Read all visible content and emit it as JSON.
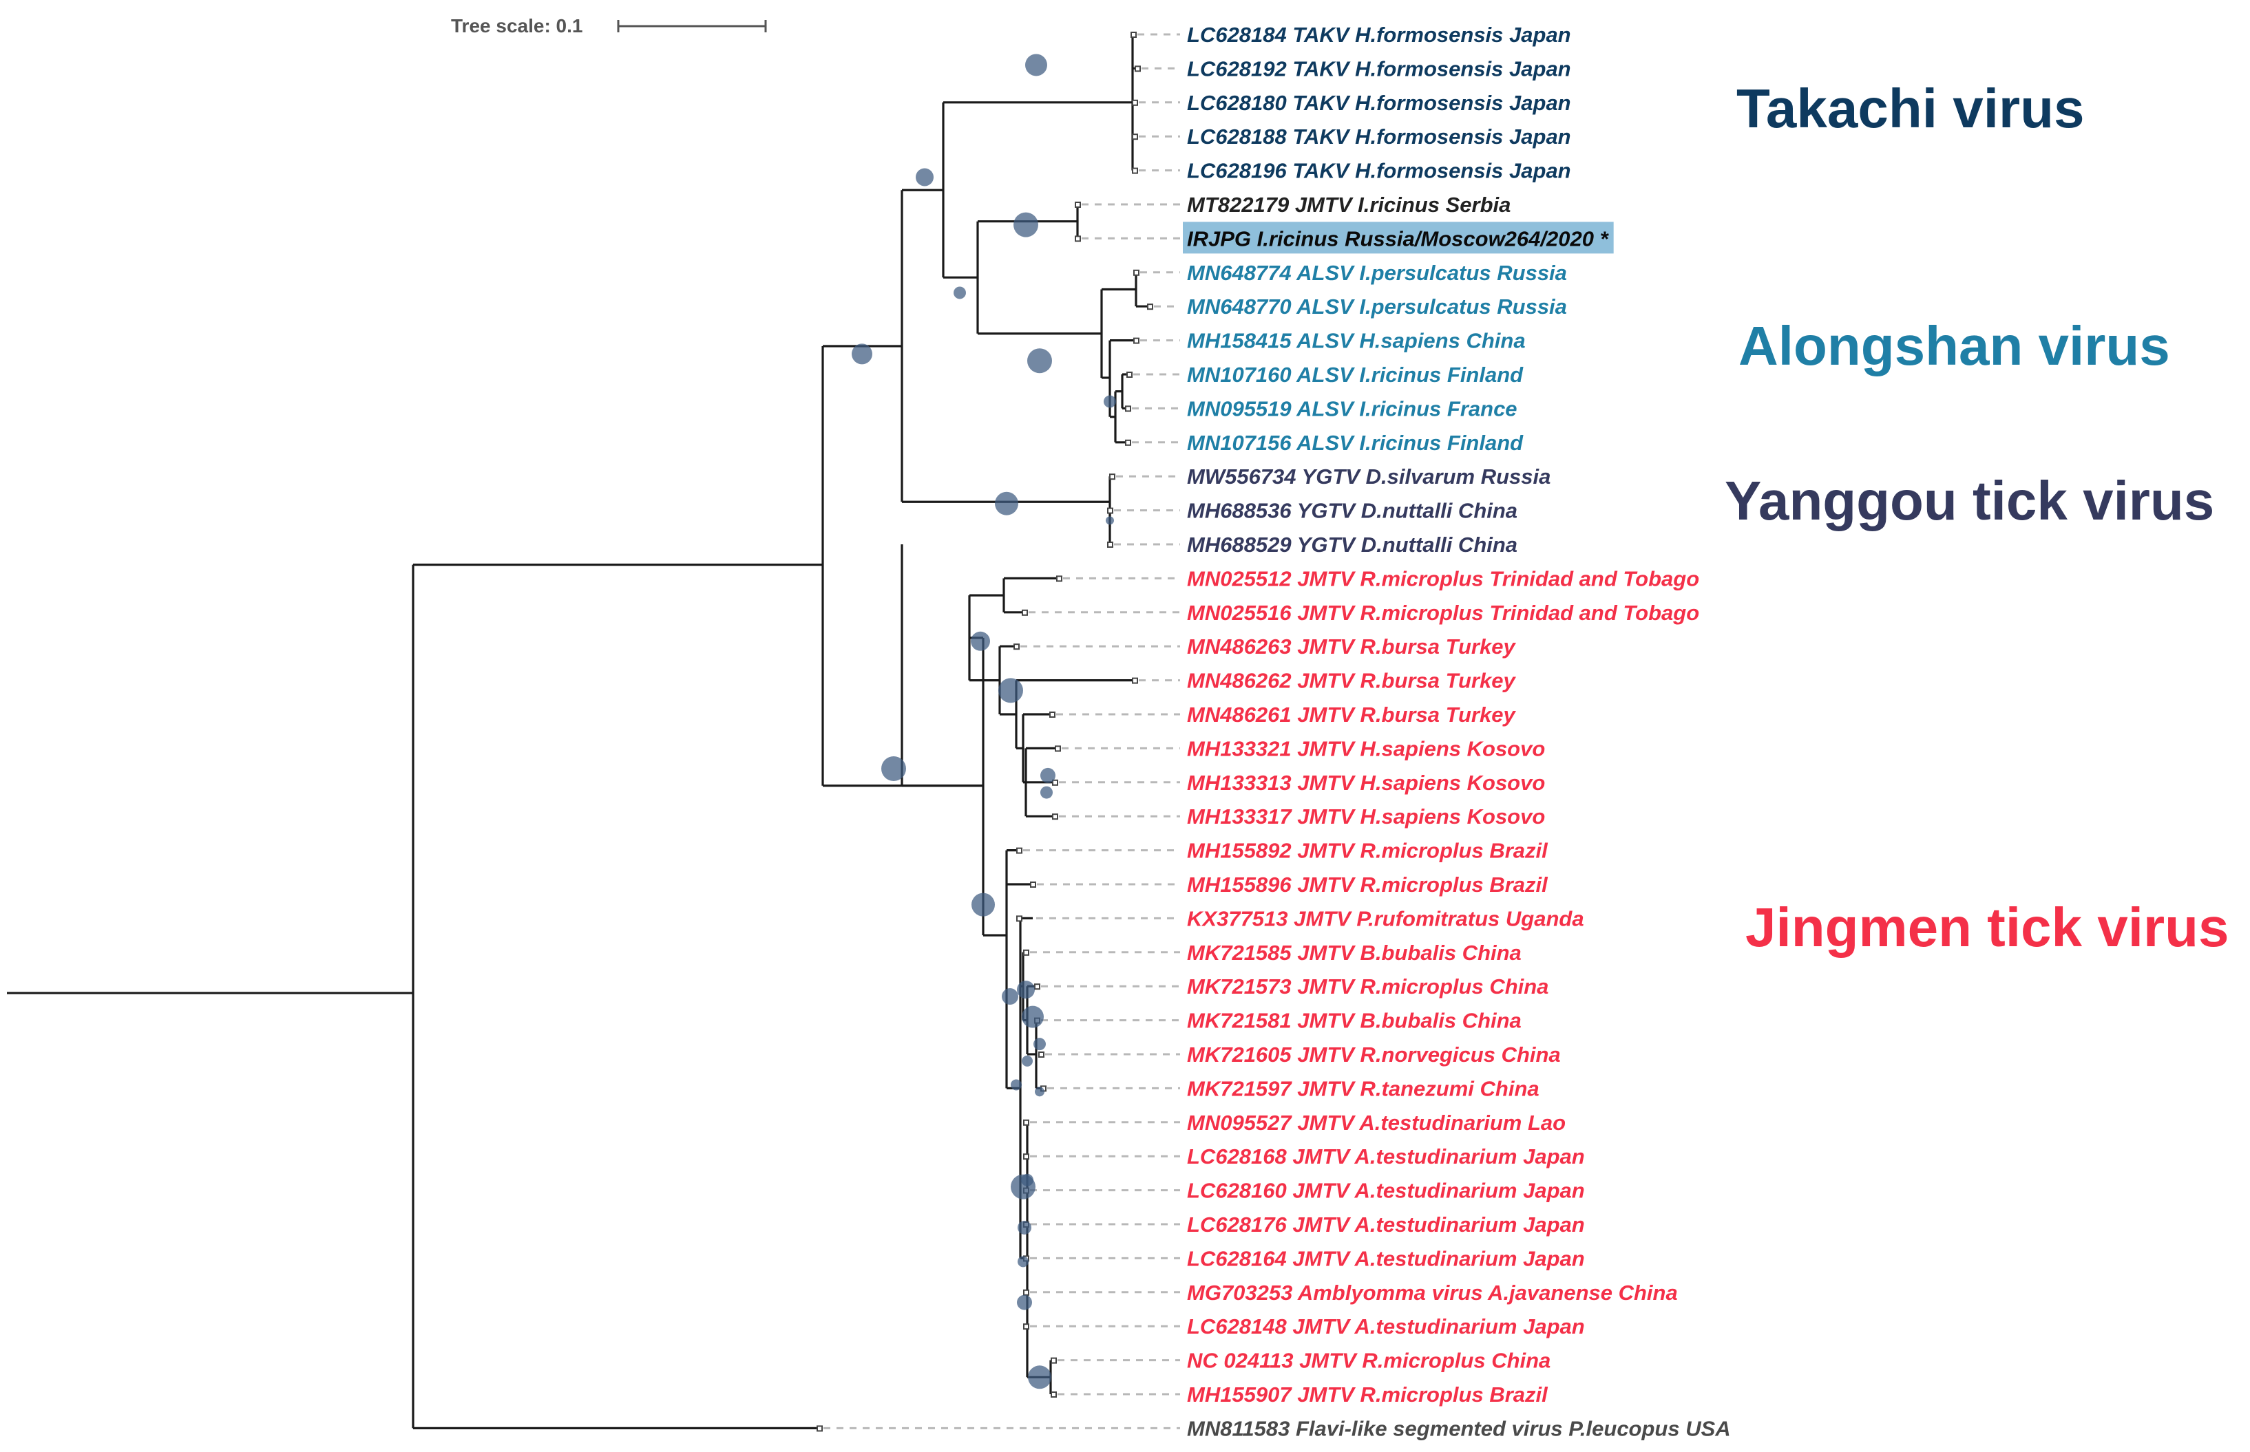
{
  "scale": {
    "label": "Tree scale: 0.1"
  },
  "colors": {
    "takachi": "#0e3a5f",
    "alongshan": "#1f7fa6",
    "yanggou": "#353a5e",
    "jingmen": "#f43048",
    "neutral": "#222222",
    "outgroup": "#4a4a4a",
    "highlight": "#8fbfdb",
    "support": "#3d5a80"
  },
  "clades": [
    {
      "name": "Takachi virus",
      "color": "#0e3a5f"
    },
    {
      "name": "Alongshan virus",
      "color": "#1f7fa6"
    },
    {
      "name": "Yanggou tick virus",
      "color": "#353a5e"
    },
    {
      "name": "Jingmen tick virus",
      "color": "#f43048"
    }
  ],
  "leaves": [
    {
      "label": "LC628184 TAKV H.formosensis Japan",
      "clade": "takachi"
    },
    {
      "label": "LC628192 TAKV H.formosensis Japan",
      "clade": "takachi"
    },
    {
      "label": "LC628180 TAKV H.formosensis Japan",
      "clade": "takachi"
    },
    {
      "label": "LC628188 TAKV H.formosensis Japan",
      "clade": "takachi"
    },
    {
      "label": "LC628196 TAKV H.formosensis Japan",
      "clade": "takachi"
    },
    {
      "label": "MT822179 JMTV I.ricinus Serbia",
      "clade": "neutral"
    },
    {
      "label": "IRJPG I.ricinus Russia/Moscow264/2020 *",
      "clade": "neutral",
      "highlight": true
    },
    {
      "label": "MN648774 ALSV I.persulcatus Russia",
      "clade": "alongshan"
    },
    {
      "label": "MN648770 ALSV I.persulcatus Russia",
      "clade": "alongshan"
    },
    {
      "label": "MH158415 ALSV H.sapiens China",
      "clade": "alongshan"
    },
    {
      "label": "MN107160 ALSV I.ricinus Finland",
      "clade": "alongshan"
    },
    {
      "label": "MN095519 ALSV I.ricinus France",
      "clade": "alongshan"
    },
    {
      "label": "MN107156 ALSV I.ricinus Finland",
      "clade": "alongshan"
    },
    {
      "label": "MW556734 YGTV D.silvarum Russia",
      "clade": "yanggou"
    },
    {
      "label": "MH688536 YGTV D.nuttalli China",
      "clade": "yanggou"
    },
    {
      "label": "MH688529 YGTV D.nuttalli China",
      "clade": "yanggou"
    },
    {
      "label": "MN025512 JMTV R.microplus Trinidad and Tobago",
      "clade": "jingmen"
    },
    {
      "label": "MN025516 JMTV R.microplus Trinidad and Tobago",
      "clade": "jingmen"
    },
    {
      "label": "MN486263 JMTV R.bursa Turkey",
      "clade": "jingmen"
    },
    {
      "label": "MN486262 JMTV R.bursa Turkey",
      "clade": "jingmen"
    },
    {
      "label": "MN486261 JMTV R.bursa Turkey",
      "clade": "jingmen"
    },
    {
      "label": "MH133321 JMTV H.sapiens Kosovo",
      "clade": "jingmen"
    },
    {
      "label": "MH133313 JMTV H.sapiens Kosovo",
      "clade": "jingmen"
    },
    {
      "label": "MH133317 JMTV H.sapiens Kosovo",
      "clade": "jingmen"
    },
    {
      "label": "MH155892 JMTV R.microplus Brazil",
      "clade": "jingmen"
    },
    {
      "label": "MH155896 JMTV R.microplus Brazil",
      "clade": "jingmen"
    },
    {
      "label": "KX377513 JMTV P.rufomitratus Uganda",
      "clade": "jingmen"
    },
    {
      "label": "MK721585 JMTV B.bubalis China",
      "clade": "jingmen"
    },
    {
      "label": "MK721573 JMTV R.microplus China",
      "clade": "jingmen"
    },
    {
      "label": "MK721581 JMTV B.bubalis China",
      "clade": "jingmen"
    },
    {
      "label": "MK721605 JMTV R.norvegicus China",
      "clade": "jingmen"
    },
    {
      "label": "MK721597 JMTV R.tanezumi China",
      "clade": "jingmen"
    },
    {
      "label": "MN095527 JMTV A.testudinarium Lao",
      "clade": "jingmen"
    },
    {
      "label": "LC628168 JMTV A.testudinarium Japan",
      "clade": "jingmen"
    },
    {
      "label": "LC628160 JMTV A.testudinarium Japan",
      "clade": "jingmen"
    },
    {
      "label": "LC628176 JMTV A.testudinarium Japan",
      "clade": "jingmen"
    },
    {
      "label": "LC628164 JMTV A.testudinarium Japan",
      "clade": "jingmen"
    },
    {
      "label": "MG703253 Amblyomma virus A.javanense China",
      "clade": "jingmen"
    },
    {
      "label": "LC628148 JMTV A.testudinarium Japan",
      "clade": "jingmen"
    },
    {
      "label": "NC 024113 JMTV R.microplus China",
      "clade": "jingmen"
    },
    {
      "label": "MH155907 JMTV R.microplus Brazil",
      "clade": "jingmen"
    },
    {
      "label": "MN811583 Flavi-like segmented virus P.leucopus USA",
      "clade": "outgroup"
    }
  ]
}
